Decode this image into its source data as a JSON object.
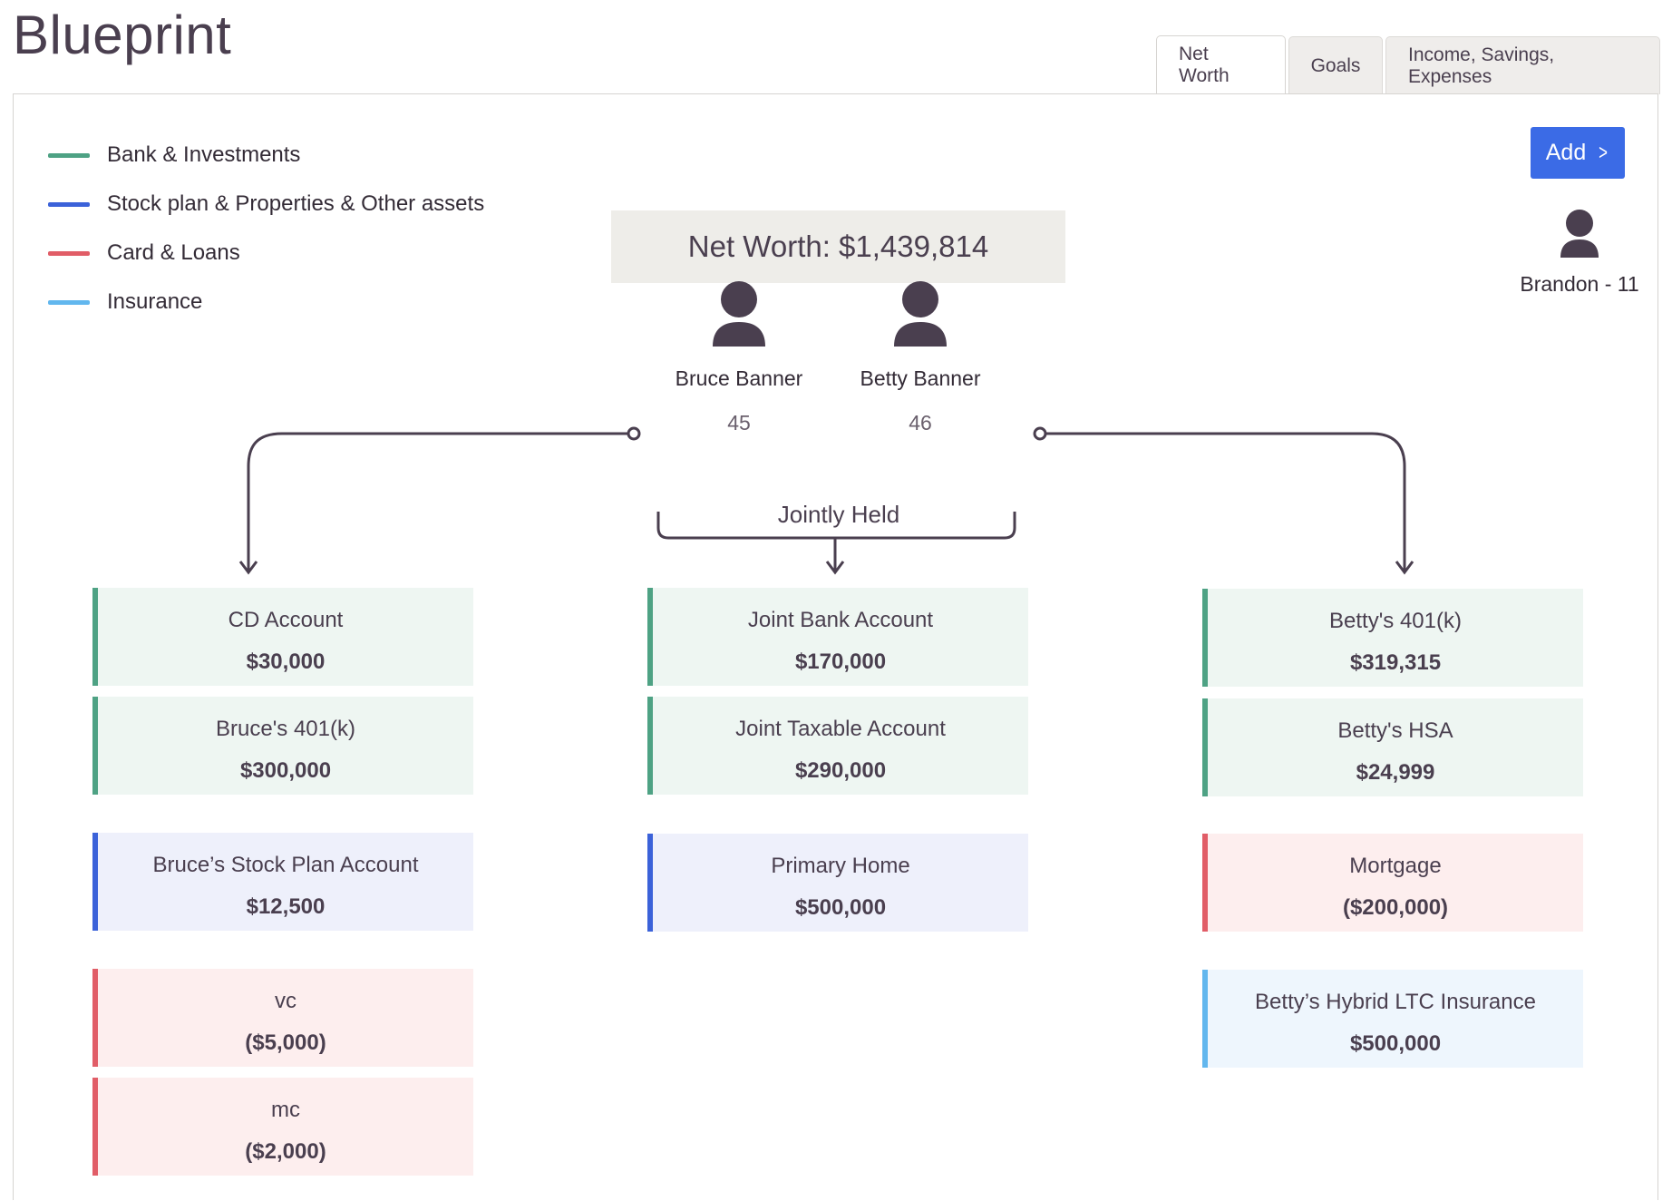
{
  "header": {
    "title": "Blueprint"
  },
  "tabs": [
    {
      "label": "Net Worth",
      "active": true
    },
    {
      "label": "Goals",
      "active": false
    },
    {
      "label": "Income, Savings, Expenses",
      "active": false
    }
  ],
  "legend": [
    {
      "label": "Bank & Investments",
      "color": "#4ea284"
    },
    {
      "label": "Stock plan & Properties & Other assets",
      "color": "#3b62d9"
    },
    {
      "label": "Card & Loans",
      "color": "#e15d67"
    },
    {
      "label": "Insurance",
      "color": "#62b7ee"
    }
  ],
  "add_button": {
    "label": "Add",
    "icon": "chevron-right-icon",
    "color": "#3b6be6"
  },
  "net_worth": "Net Worth: $1,439,814",
  "people": [
    {
      "name": "Bruce Banner",
      "age": "45"
    },
    {
      "name": "Betty Banner",
      "age": "46"
    }
  ],
  "dependent": {
    "name": "Brandon - 11"
  },
  "jointly_held_label": "Jointly Held",
  "columns": {
    "bruce": [
      {
        "name": "CD Account",
        "value": "$30,000",
        "category": "bank"
      },
      {
        "name": "Bruce's 401(k)",
        "value": "$300,000",
        "category": "bank"
      },
      {
        "name": "Bruce’s Stock Plan Account",
        "value": "$12,500",
        "category": "stock"
      },
      {
        "name": "vc",
        "value": "($5,000)",
        "category": "loan"
      },
      {
        "name": "mc",
        "value": "($2,000)",
        "category": "loan"
      }
    ],
    "joint": [
      {
        "name": "Joint Bank Account",
        "value": "$170,000",
        "category": "bank"
      },
      {
        "name": "Joint Taxable Account",
        "value": "$290,000",
        "category": "bank"
      },
      {
        "name": "Primary Home",
        "value": "$500,000",
        "category": "stock"
      }
    ],
    "betty": [
      {
        "name": "Betty's 401(k)",
        "value": "$319,315",
        "category": "bank"
      },
      {
        "name": "Betty's HSA",
        "value": "$24,999",
        "category": "bank"
      },
      {
        "name": "Mortgage",
        "value": "($200,000)",
        "category": "loan"
      },
      {
        "name": "Betty’s Hybrid LTC Insurance",
        "value": "$500,000",
        "category": "insurance"
      }
    ]
  }
}
